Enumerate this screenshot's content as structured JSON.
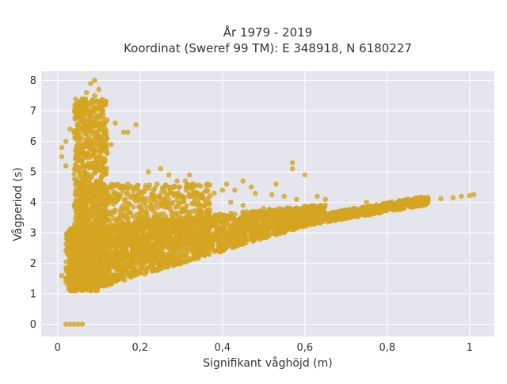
{
  "chart_data": {
    "type": "scatter",
    "title_lines": [
      "År 1979 - 2019",
      "Koordinat (Sweref 99 TM): E 348918, N 6180227"
    ],
    "xlabel": "Signifikant våghöjd (m)",
    "ylabel": "Vågperiod (s)",
    "xlim": [
      -0.04,
      1.06
    ],
    "ylim": [
      -0.4,
      8.3
    ],
    "xticks": [
      0,
      0.2,
      0.4,
      0.6,
      0.8,
      1
    ],
    "xtick_labels": [
      "0",
      "0,2",
      "0,4",
      "0,6",
      "0,8",
      "1"
    ],
    "yticks": [
      0,
      1,
      2,
      3,
      4,
      5,
      6,
      7,
      8
    ],
    "ytick_labels": [
      "0",
      "1",
      "2",
      "3",
      "4",
      "5",
      "6",
      "7",
      "8"
    ],
    "grid": true,
    "marker_color": "#d4a520",
    "background_color": "#e5e5ee",
    "points": [
      [
        0.02,
        0.0
      ],
      [
        0.03,
        0.0
      ],
      [
        0.04,
        0.0
      ],
      [
        0.05,
        0.0
      ],
      [
        0.06,
        0.0
      ],
      [
        0.01,
        1.6
      ],
      [
        0.02,
        1.4
      ],
      [
        0.02,
        1.5
      ],
      [
        0.03,
        1.2
      ],
      [
        0.04,
        1.1
      ],
      [
        0.01,
        5.5
      ],
      [
        0.01,
        5.8
      ],
      [
        0.02,
        6.0
      ],
      [
        0.02,
        5.2
      ],
      [
        0.09,
        8.0
      ],
      [
        0.08,
        7.9
      ],
      [
        0.1,
        7.7
      ],
      [
        0.09,
        7.5
      ],
      [
        0.07,
        7.6
      ],
      [
        0.06,
        7.4
      ],
      [
        0.09,
        7.3
      ],
      [
        0.1,
        7.1
      ],
      [
        0.07,
        7.2
      ],
      [
        0.05,
        7.0
      ],
      [
        0.06,
        6.8
      ],
      [
        0.08,
        6.6
      ],
      [
        0.11,
        6.9
      ],
      [
        0.12,
        6.7
      ],
      [
        0.12,
        6.1
      ],
      [
        0.13,
        5.9
      ],
      [
        0.12,
        5.6
      ],
      [
        0.14,
        6.6
      ],
      [
        0.16,
        6.3
      ],
      [
        0.17,
        6.3
      ],
      [
        0.19,
        6.55
      ],
      [
        0.03,
        6.4
      ],
      [
        0.04,
        6.3
      ],
      [
        0.05,
        6.1
      ],
      [
        0.22,
        5.0
      ],
      [
        0.25,
        5.1
      ],
      [
        0.27,
        4.9
      ],
      [
        0.29,
        4.7
      ],
      [
        0.31,
        4.7
      ],
      [
        0.32,
        4.9
      ],
      [
        0.33,
        4.6
      ],
      [
        0.36,
        4.4
      ],
      [
        0.41,
        4.6
      ],
      [
        0.43,
        4.4
      ],
      [
        0.45,
        4.7
      ],
      [
        0.48,
        4.3
      ],
      [
        0.53,
        4.6
      ],
      [
        0.57,
        5.3
      ],
      [
        0.57,
        5.1
      ],
      [
        0.6,
        4.9
      ],
      [
        0.52,
        4.25
      ],
      [
        0.55,
        4.2
      ],
      [
        0.58,
        4.1
      ],
      [
        0.63,
        4.2
      ],
      [
        0.65,
        4.1
      ],
      [
        0.4,
        4.4
      ],
      [
        0.42,
        4.0
      ],
      [
        0.45,
        3.9
      ],
      [
        0.47,
        4.5
      ],
      [
        0.5,
        3.8
      ],
      [
        0.38,
        4.3
      ],
      [
        0.75,
        4.0
      ],
      [
        0.8,
        3.95
      ],
      [
        0.85,
        4.0
      ],
      [
        0.9,
        4.1
      ],
      [
        0.93,
        4.12
      ],
      [
        0.96,
        4.15
      ],
      [
        0.98,
        4.2
      ],
      [
        1.0,
        4.22
      ],
      [
        1.01,
        4.25
      ],
      [
        0.26,
        4.0
      ],
      [
        0.28,
        4.3
      ],
      [
        0.3,
        3.2
      ],
      [
        0.22,
        3.4
      ],
      [
        0.18,
        2.1
      ],
      [
        0.15,
        1.9
      ],
      [
        0.12,
        1.6
      ],
      [
        0.1,
        1.3
      ],
      [
        0.08,
        1.2
      ],
      [
        0.06,
        1.2
      ],
      [
        0.17,
        4.6
      ],
      [
        0.19,
        4.5
      ],
      [
        0.14,
        4.3
      ],
      [
        0.13,
        3.6
      ],
      [
        0.23,
        4.2
      ],
      [
        0.35,
        3.5
      ],
      [
        0.44,
        3.4
      ],
      [
        0.5,
        3.3
      ],
      [
        0.55,
        3.0
      ],
      [
        0.62,
        3.3
      ],
      [
        0.68,
        3.5
      ],
      [
        0.72,
        3.6
      ],
      [
        0.78,
        3.75
      ],
      [
        0.83,
        3.85
      ],
      [
        0.88,
        3.9
      ]
    ]
  }
}
